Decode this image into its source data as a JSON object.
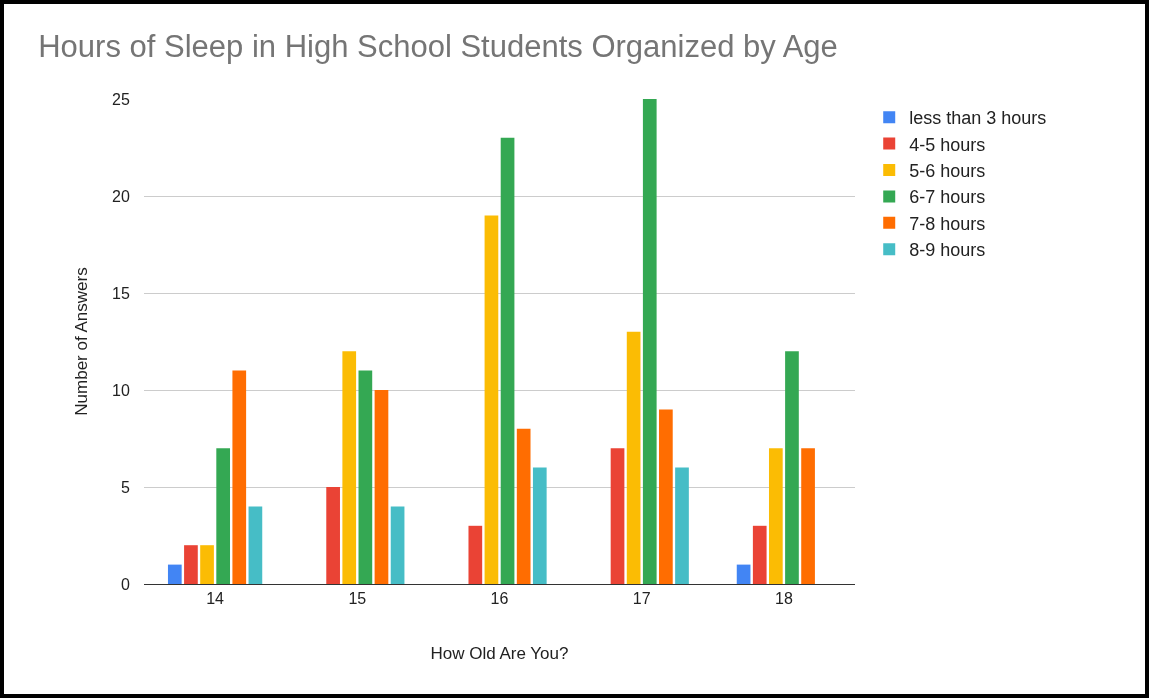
{
  "chart_data": {
    "type": "bar",
    "title": "Hours of Sleep in High School Students Organized by Age",
    "xlabel": "How Old Are You?",
    "ylabel": "Number of Answers",
    "categories": [
      "14",
      "15",
      "16",
      "17",
      "18"
    ],
    "series": [
      {
        "name": "less than 3 hours",
        "color": "#4285f4",
        "values": [
          1,
          null,
          null,
          null,
          1
        ]
      },
      {
        "name": "4-5 hours",
        "color": "#ea4335",
        "values": [
          2,
          5,
          3,
          7,
          3
        ]
      },
      {
        "name": "5-6 hours",
        "color": "#fbbc04",
        "values": [
          2,
          12,
          19,
          13,
          7
        ]
      },
      {
        "name": "6-7 hours",
        "color": "#34a853",
        "values": [
          7,
          11,
          23,
          25,
          12
        ]
      },
      {
        "name": "7-8 hours",
        "color": "#ff6d01",
        "values": [
          11,
          10,
          8,
          9,
          7
        ]
      },
      {
        "name": "8-9 hours",
        "color": "#46bdc6",
        "values": [
          4,
          4,
          6,
          6,
          null
        ]
      }
    ],
    "ylim": [
      0,
      25
    ],
    "yticks": [
      0,
      5,
      10,
      15,
      20,
      25
    ],
    "grid": "y",
    "legend": "top right"
  }
}
